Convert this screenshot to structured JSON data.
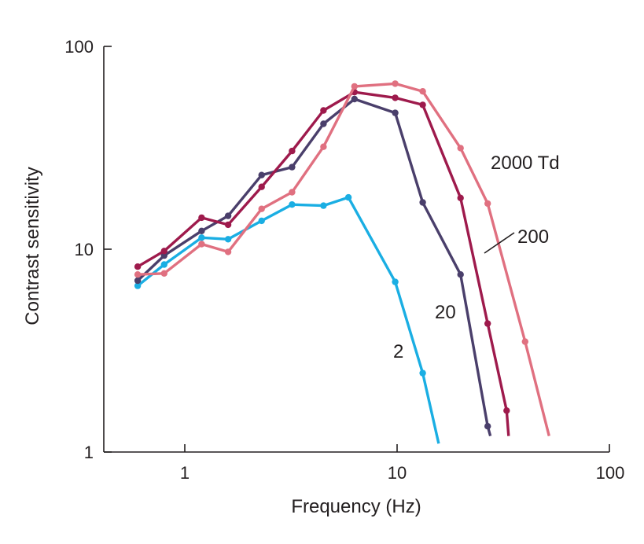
{
  "chart_data": {
    "type": "line",
    "title": "",
    "xlabel": "Frequency (Hz)",
    "ylabel": "Contrast sensitivity",
    "xscale": "log",
    "yscale": "log",
    "xlim": [
      0.4,
      100
    ],
    "ylim": [
      1,
      100
    ],
    "x_ticks": [
      1,
      10,
      100
    ],
    "x_tick_labels": [
      "1",
      "10",
      "100"
    ],
    "y_ticks": [
      1,
      10,
      100
    ],
    "y_tick_labels": [
      "1",
      "10",
      "100"
    ],
    "grid": false,
    "legend": "inline labels",
    "series": [
      {
        "name": "2",
        "label": "2",
        "color": "#1aaee3",
        "x": [
          0.6,
          0.8,
          1.2,
          1.6,
          2.3,
          3.2,
          4.5,
          5.9,
          9.8,
          13.2
        ],
        "y": [
          6.6,
          8.4,
          11.4,
          11.2,
          13.8,
          16.6,
          16.4,
          18.0,
          6.9,
          2.45
        ],
        "tail": [
          15.7,
          1.1
        ]
      },
      {
        "name": "20",
        "label": "20",
        "color": "#4a3f6b",
        "x": [
          0.6,
          0.8,
          1.2,
          1.6,
          2.3,
          3.2,
          4.5,
          6.3,
          9.8,
          13.2,
          19.9,
          26.7
        ],
        "y": [
          7.0,
          9.3,
          12.3,
          14.6,
          23.2,
          25.4,
          41.5,
          55.0,
          47.0,
          17.0,
          7.5,
          1.34
        ],
        "tail": [
          27.5,
          1.2
        ]
      },
      {
        "name": "200",
        "label": "200",
        "color": "#9e1a4c",
        "x": [
          0.6,
          0.8,
          1.2,
          1.6,
          2.3,
          3.2,
          4.5,
          6.3,
          9.8,
          13.2,
          19.9,
          26.7,
          32.8
        ],
        "y": [
          8.2,
          9.8,
          14.3,
          13.2,
          20.3,
          30.5,
          48.3,
          59.5,
          55.8,
          51.5,
          17.9,
          4.3,
          1.6
        ],
        "tail": [
          33.5,
          1.2
        ]
      },
      {
        "name": "2000 Td",
        "label": "2000 Td",
        "color": "#e07080",
        "x": [
          0.6,
          0.8,
          1.2,
          1.6,
          2.3,
          3.2,
          4.5,
          6.3,
          9.8,
          13.2,
          19.9,
          26.7,
          40.1
        ],
        "y": [
          7.5,
          7.6,
          10.6,
          9.7,
          15.8,
          19.1,
          32.0,
          63.5,
          65.5,
          60.0,
          31.5,
          16.8,
          3.5
        ],
        "tail": [
          52.0,
          1.2
        ]
      }
    ],
    "annotations": [
      {
        "text": "2000 Td",
        "series": "2000 Td"
      },
      {
        "text": "200",
        "series": "200"
      },
      {
        "text": "20",
        "series": "20"
      },
      {
        "text": "2",
        "series": "2"
      }
    ]
  }
}
